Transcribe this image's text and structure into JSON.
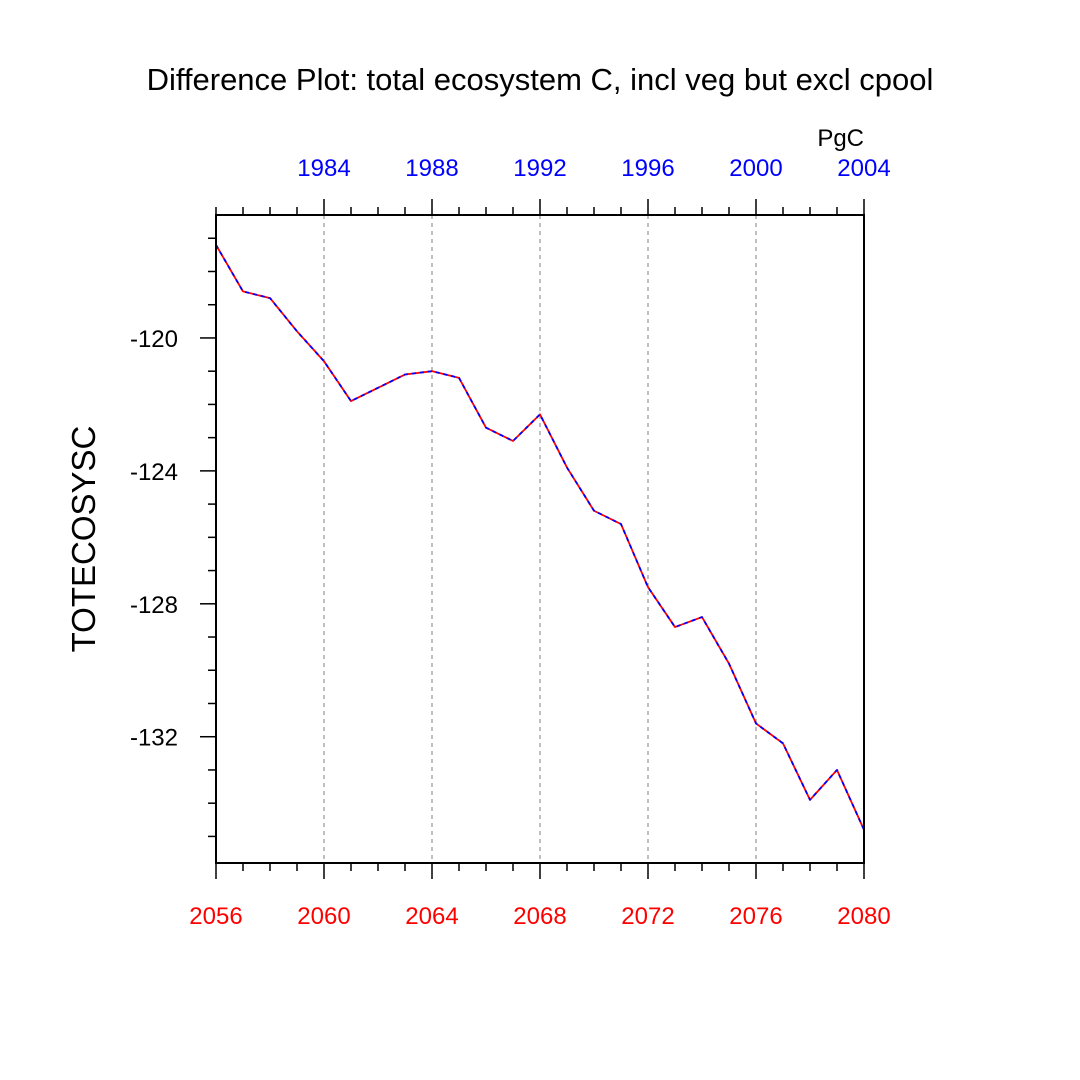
{
  "chart_data": {
    "type": "line",
    "title": "Difference Plot: total ecosystem C, incl veg but excl cpool",
    "ylabel": "TOTECOSYSC",
    "units": "PgC",
    "x_bottom": {
      "label": "",
      "range": [
        2056,
        2080
      ],
      "tick_labels": [
        "2056",
        "2060",
        "2064",
        "2068",
        "2072",
        "2076",
        "2080"
      ],
      "color": "#ff0000"
    },
    "x_top": {
      "range": [
        1980,
        2004
      ],
      "tick_labels": [
        "1984",
        "1988",
        "1992",
        "1996",
        "2000",
        "2004"
      ],
      "color": "#0000ff"
    },
    "y": {
      "range": [
        -135.8,
        -116.3
      ],
      "tick_labels": [
        "-120",
        "-124",
        "-128",
        "-132"
      ]
    },
    "grid": "vertical dashed at major x ticks",
    "series": [
      {
        "color": "#ff0000",
        "style": "solid",
        "x": [
          2056,
          2057,
          2058,
          2059,
          2060,
          2061,
          2062,
          2063,
          2064,
          2065,
          2066,
          2067,
          2068,
          2069,
          2070,
          2071,
          2072,
          2073,
          2074,
          2075,
          2076,
          2077,
          2078,
          2079,
          2080
        ],
        "values": [
          -117.2,
          -118.6,
          -118.8,
          -119.8,
          -120.7,
          -121.9,
          -121.5,
          -121.1,
          -121.0,
          -121.2,
          -122.7,
          -123.1,
          -122.3,
          -123.9,
          -125.2,
          -125.6,
          -127.5,
          -128.7,
          -128.4,
          -129.8,
          -131.6,
          -132.2,
          -133.9,
          -133.0,
          -134.8
        ]
      },
      {
        "color": "#0000ff",
        "style": "dashed",
        "x": [
          2056,
          2057,
          2058,
          2059,
          2060,
          2061,
          2062,
          2063,
          2064,
          2065,
          2066,
          2067,
          2068,
          2069,
          2070,
          2071,
          2072,
          2073,
          2074,
          2075,
          2076,
          2077,
          2078,
          2079,
          2080
        ],
        "values": [
          -117.2,
          -118.6,
          -118.8,
          -119.8,
          -120.7,
          -121.9,
          -121.5,
          -121.1,
          -121.0,
          -121.2,
          -122.7,
          -123.1,
          -122.3,
          -123.9,
          -125.2,
          -125.6,
          -127.5,
          -128.7,
          -128.4,
          -129.8,
          -131.6,
          -132.2,
          -133.9,
          -133.0,
          -134.8
        ]
      }
    ]
  }
}
